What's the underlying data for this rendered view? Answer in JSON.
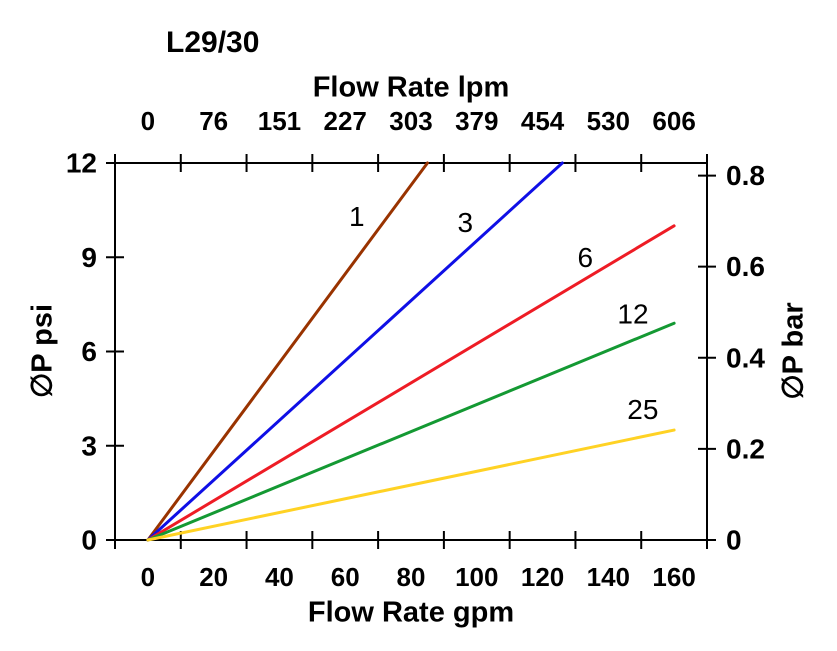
{
  "chart_data": {
    "type": "line",
    "title": "L29/30",
    "axes": {
      "bottom": {
        "label": "Flow Rate gpm",
        "ticks": [
          0,
          20,
          40,
          60,
          80,
          100,
          120,
          140,
          160
        ]
      },
      "top": {
        "label": "Flow Rate lpm",
        "ticks": [
          0,
          76,
          151,
          227,
          303,
          379,
          454,
          530,
          606
        ]
      },
      "left": {
        "label": "∅P psi",
        "ticks": [
          0,
          3,
          6,
          9,
          12
        ],
        "range": [
          0,
          12
        ]
      },
      "right": {
        "label": "∅P bar",
        "ticks": [
          "0",
          "0.2",
          "0.4",
          "0.6",
          "0.8"
        ],
        "psi_per_bar": 14.5
      }
    },
    "grid": false,
    "legend_position": "inline-labels",
    "series": [
      {
        "name": "1",
        "color": "#993300",
        "points_gpm_psi": [
          [
            0,
            0
          ],
          [
            85,
            12
          ]
        ]
      },
      {
        "name": "3",
        "color": "#0F0FE6",
        "points_gpm_psi": [
          [
            0,
            0
          ],
          [
            126,
            12
          ]
        ]
      },
      {
        "name": "6",
        "color": "#EE1C25",
        "points_gpm_psi": [
          [
            0,
            0
          ],
          [
            160,
            10
          ]
        ]
      },
      {
        "name": "12",
        "color": "#149933",
        "points_gpm_psi": [
          [
            0,
            0
          ],
          [
            160,
            6.9
          ]
        ]
      },
      {
        "name": "25",
        "color": "#FFD224",
        "points_gpm_psi": [
          [
            0,
            0
          ],
          [
            160,
            3.5
          ]
        ]
      }
    ],
    "series_labels": [
      {
        "text": "1",
        "x_gpm": 63.5,
        "y_psi": 10.3
      },
      {
        "text": "3",
        "x_gpm": 96.5,
        "y_psi": 10.1
      },
      {
        "text": "6",
        "x_gpm": 133.0,
        "y_psi": 9.0
      },
      {
        "text": "12",
        "x_gpm": 147.5,
        "y_psi": 7.2
      },
      {
        "text": "25",
        "x_gpm": 150.5,
        "y_psi": 4.15
      }
    ],
    "colors": {
      "axis": "#000000",
      "background": "#ffffff"
    }
  }
}
